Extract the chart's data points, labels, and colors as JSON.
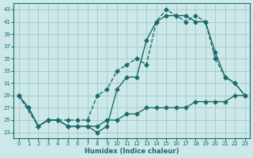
{
  "xlabel": "Humidex (Indice chaleur)",
  "bg_color": "#cce8e8",
  "grid_color": "#aacccc",
  "line_color": "#1a6b6b",
  "xlim": [
    -0.5,
    23.5
  ],
  "ylim": [
    22,
    44
  ],
  "xticks": [
    0,
    1,
    2,
    3,
    4,
    5,
    6,
    7,
    8,
    9,
    10,
    11,
    12,
    13,
    14,
    15,
    16,
    17,
    18,
    19,
    20,
    21,
    22,
    23
  ],
  "yticks": [
    23,
    25,
    27,
    29,
    31,
    33,
    35,
    37,
    39,
    41,
    43
  ],
  "line1_x": [
    0,
    1,
    2,
    3,
    4,
    5,
    6,
    7,
    8,
    9,
    10,
    11,
    12,
    13,
    14,
    15,
    16,
    17,
    18,
    19,
    20,
    21,
    22,
    23
  ],
  "line1_y": [
    29,
    27,
    24,
    25,
    25,
    24,
    24,
    24,
    24,
    25,
    25,
    26,
    26,
    27,
    27,
    27,
    27,
    27,
    28,
    28,
    28,
    28,
    29,
    29
  ],
  "line2_x": [
    0,
    2,
    3,
    4,
    5,
    6,
    7,
    8,
    9,
    10,
    11,
    12,
    13,
    14,
    15,
    16,
    17,
    18,
    19,
    20,
    21,
    22,
    23
  ],
  "line2_y": [
    29,
    24,
    25,
    25,
    25,
    25,
    25,
    29,
    30,
    33,
    34,
    35,
    34,
    41,
    43,
    42,
    41,
    42,
    41,
    35,
    32,
    31,
    29
  ],
  "line3_x": [
    0,
    1,
    2,
    3,
    4,
    5,
    6,
    7,
    8,
    9,
    10,
    11,
    12,
    13,
    14,
    15,
    16,
    17,
    18,
    19,
    20,
    21,
    22,
    23
  ],
  "line3_y": [
    29,
    27,
    24,
    25,
    25,
    24,
    24,
    24,
    23,
    24,
    30,
    32,
    32,
    38,
    41,
    42,
    42,
    42,
    41,
    41,
    36,
    32,
    31,
    29
  ]
}
